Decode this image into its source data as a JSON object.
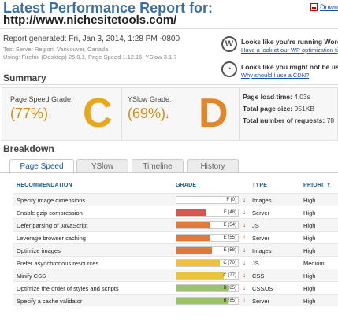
{
  "header": {
    "title": "Latest Performance Report for:",
    "url": "http://www.nichesitetools.com/",
    "download_label": "Download"
  },
  "meta": {
    "generated": "Report generated: Fri, Jan 3, 2014, 1:28 PM -0800",
    "region": "Test Server Region: Vancouver, Canada",
    "using": "Using: Firefox (Desktop) 25.0.1, Page Speed 1.12.16, YSlow 3.1.7"
  },
  "notices": [
    {
      "icon": "wordpress-icon",
      "glyph": "W",
      "heading": "Looks like you're running WordPress",
      "link": "Have a look at our WP optimization tips"
    },
    {
      "icon": "speedometer-icon",
      "glyph": "◔",
      "heading": "Looks like you might not be using",
      "link": "Why should I use a CDN?"
    }
  ],
  "summary": {
    "heading": "Summary",
    "pagespeed": {
      "label": "Page Speed Grade:",
      "score": "(77%)",
      "trend": "↕",
      "grade": "C",
      "color": "#e9a81b"
    },
    "yslow": {
      "label": "YSlow Grade:",
      "score": "(69%)",
      "trend": "↓",
      "grade": "D",
      "color": "#e0872a"
    },
    "stats": {
      "load_label": "Page load time:",
      "load_value": "4.03s",
      "size_label": "Total page size:",
      "size_value": "951KB",
      "req_label": "Total number of requests:",
      "req_value": "78"
    }
  },
  "breakdown": {
    "heading": "Breakdown",
    "tabs": [
      {
        "label": "Page Speed",
        "active": true
      },
      {
        "label": "YSlow",
        "active": false
      },
      {
        "label": "Timeline",
        "active": false
      },
      {
        "label": "History",
        "active": false
      }
    ],
    "columns": {
      "recommendation": "RECOMMENDATION",
      "grade": "GRADE",
      "type": "TYPE",
      "priority": "PRIORITY"
    },
    "rows": [
      {
        "recommendation": "Specify image dimensions",
        "grade": "F (0)",
        "score": 0,
        "color": "#d9534f",
        "trend": "↓",
        "type": "Images",
        "priority": "High"
      },
      {
        "recommendation": "Enable gzip compression",
        "grade": "F (48)",
        "score": 48,
        "color": "#d9534f",
        "trend": "↓",
        "type": "Server",
        "priority": "High"
      },
      {
        "recommendation": "Defer parsing of JavaScript",
        "grade": "E (54)",
        "score": 54,
        "color": "#e07a3c",
        "trend": "↓",
        "type": "JS",
        "priority": "High"
      },
      {
        "recommendation": "Leverage browser caching",
        "grade": "E (55)",
        "score": 55,
        "color": "#e07a3c",
        "trend": "↕",
        "type": "Server",
        "priority": "High"
      },
      {
        "recommendation": "Optimize images",
        "grade": "E (58)",
        "score": 58,
        "color": "#e07a3c",
        "trend": "↓",
        "type": "Images",
        "priority": "High"
      },
      {
        "recommendation": "Prefer asynchronous resources",
        "grade": "C (70)",
        "score": 70,
        "color": "#e9c33b",
        "trend": "↓",
        "type": "JS",
        "priority": "Medium"
      },
      {
        "recommendation": "Minify CSS",
        "grade": "C (77)",
        "score": 77,
        "color": "#e9c33b",
        "trend": "↓",
        "type": "CSS",
        "priority": "High"
      },
      {
        "recommendation": "Optimize the order of styles and scripts",
        "grade": "B (85)",
        "score": 85,
        "color": "#9cc36b",
        "trend": "↓",
        "type": "CSS/JS",
        "priority": "High"
      },
      {
        "recommendation": "Specify a cache validator",
        "grade": "B (85)",
        "score": 85,
        "color": "#9cc36b",
        "trend": "↓",
        "type": "Server",
        "priority": "High"
      }
    ]
  }
}
